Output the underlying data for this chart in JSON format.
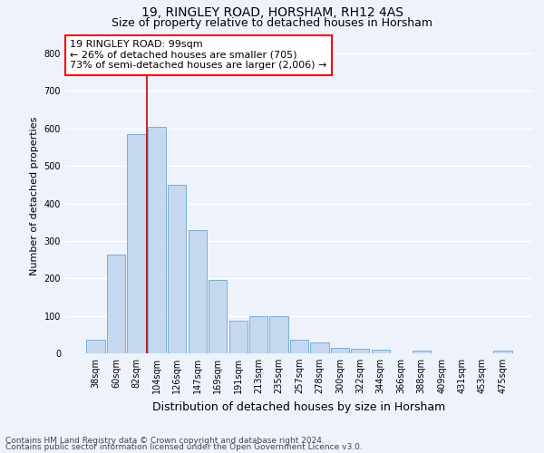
{
  "title_line1": "19, RINGLEY ROAD, HORSHAM, RH12 4AS",
  "title_line2": "Size of property relative to detached houses in Horsham",
  "xlabel": "Distribution of detached houses by size in Horsham",
  "ylabel": "Number of detached properties",
  "categories": [
    "38sqm",
    "60sqm",
    "82sqm",
    "104sqm",
    "126sqm",
    "147sqm",
    "169sqm",
    "191sqm",
    "213sqm",
    "235sqm",
    "257sqm",
    "278sqm",
    "300sqm",
    "322sqm",
    "344sqm",
    "366sqm",
    "388sqm",
    "409sqm",
    "431sqm",
    "453sqm",
    "475sqm"
  ],
  "values": [
    37,
    263,
    585,
    605,
    450,
    328,
    195,
    88,
    100,
    100,
    37,
    30,
    15,
    13,
    10,
    0,
    7,
    0,
    0,
    0,
    7
  ],
  "bar_color": "#c5d8f0",
  "bar_edge_color": "#7aafd4",
  "vline_color": "#cc0000",
  "vline_x_index": 3,
  "annotation_line1": "19 RINGLEY ROAD: 99sqm",
  "annotation_line2": "← 26% of detached houses are smaller (705)",
  "annotation_line3": "73% of semi-detached houses are larger (2,006) →",
  "annotation_box_facecolor": "white",
  "annotation_box_edgecolor": "red",
  "ylim": [
    0,
    840
  ],
  "yticks": [
    0,
    100,
    200,
    300,
    400,
    500,
    600,
    700,
    800
  ],
  "background_color": "#eef2fb",
  "grid_color": "white",
  "title1_fontsize": 10,
  "title2_fontsize": 9,
  "ylabel_fontsize": 8,
  "xlabel_fontsize": 9,
  "tick_fontsize": 7,
  "annot_fontsize": 8,
  "footer1": "Contains HM Land Registry data © Crown copyright and database right 2024.",
  "footer2": "Contains public sector information licensed under the Open Government Licence v3.0.",
  "footer_fontsize": 6.5
}
